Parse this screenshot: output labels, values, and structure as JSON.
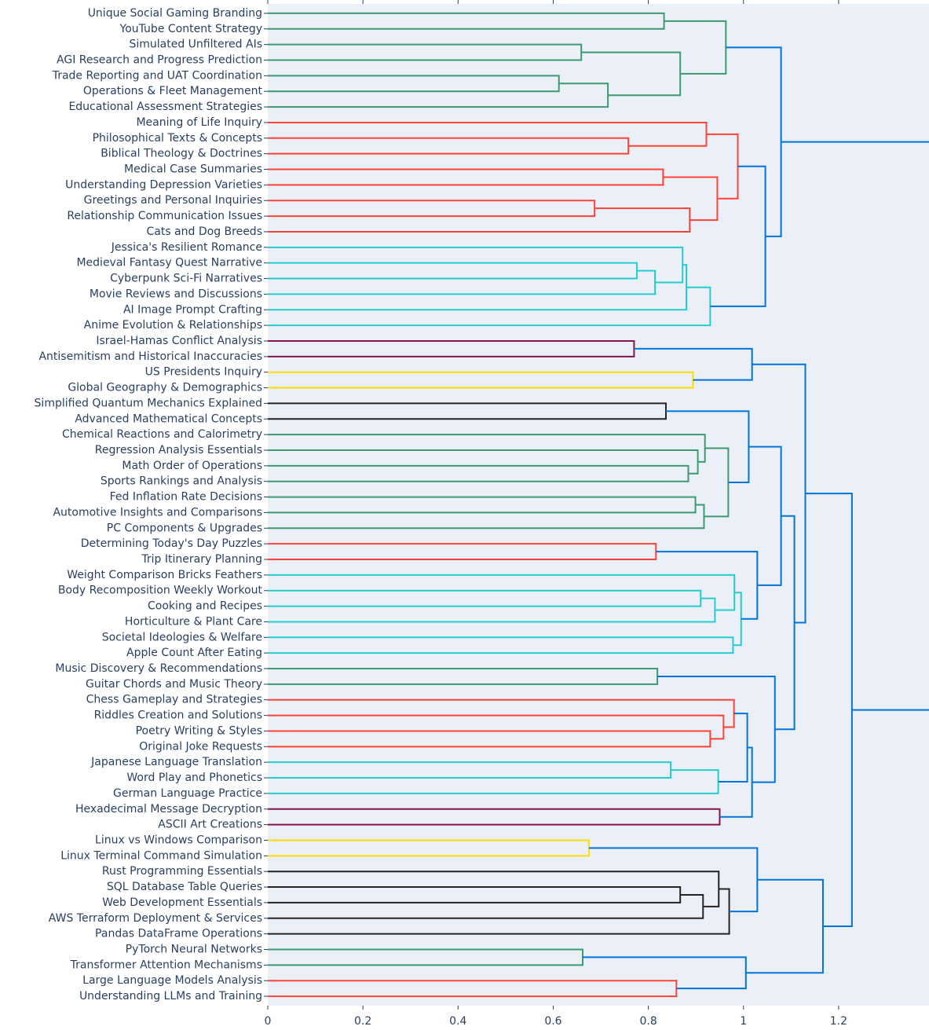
{
  "chart_data": {
    "type": "dendrogram",
    "orientation": "left",
    "xlim": [
      0,
      1.39
    ],
    "xticks": [
      0,
      0.2,
      0.4,
      0.6,
      0.8,
      1,
      1.2
    ],
    "tree": {
      "height": 1.45,
      "color": "#0074d9",
      "children": [
        {
          "height": 1.079,
          "color": "#0074d9",
          "children": [
            {
              "height": 0.963,
              "color": "#3d9970",
              "children": [
                {
                  "height": 0.833,
                  "color": "#3d9970",
                  "children": [
                    "Unique Social Gaming Branding",
                    "YouTube Content Strategy"
                  ]
                },
                {
                  "height": 0.867,
                  "color": "#3d9970",
                  "children": [
                    {
                      "height": 0.659,
                      "color": "#3d9970",
                      "children": [
                        "Simulated Unfiltered AIs",
                        "AGI Research and Progress Prediction"
                      ]
                    },
                    {
                      "height": 0.715,
                      "color": "#3d9970",
                      "children": [
                        {
                          "height": 0.612,
                          "color": "#3d9970",
                          "children": [
                            "Trade Reporting and UAT Coordination",
                            "Operations & Fleet Management"
                          ]
                        },
                        "Educational Assessment Strategies"
                      ]
                    }
                  ]
                }
              ]
            },
            {
              "height": 1.046,
              "color": "#0074d9",
              "children": [
                {
                  "height": 0.988,
                  "color": "#ff4136",
                  "children": [
                    {
                      "height": 0.922,
                      "color": "#ff4136",
                      "children": [
                        "Meaning of Life Inquiry",
                        {
                          "height": 0.758,
                          "color": "#ff4136",
                          "children": [
                            "Philosophical Texts & Concepts",
                            "Biblical Theology & Doctrines"
                          ]
                        }
                      ]
                    },
                    {
                      "height": 0.945,
                      "color": "#ff4136",
                      "children": [
                        {
                          "height": 0.831,
                          "color": "#ff4136",
                          "children": [
                            "Medical Case Summaries",
                            "Understanding Depression Varieties"
                          ]
                        },
                        {
                          "height": 0.887,
                          "color": "#ff4136",
                          "children": [
                            {
                              "height": 0.687,
                              "color": "#ff4136",
                              "children": [
                                "Greetings and Personal Inquiries",
                                "Relationship Communication Issues"
                              ]
                            },
                            "Cats and Dog Breeds"
                          ]
                        }
                      ]
                    }
                  ]
                },
                {
                  "height": 0.93,
                  "color": "#23cdcd",
                  "children": [
                    {
                      "height": 0.88,
                      "color": "#23cdcd",
                      "children": [
                        {
                          "height": 0.872,
                          "color": "#23cdcd",
                          "children": [
                            "Jessica's Resilient Romance",
                            {
                              "height": 0.814,
                              "color": "#23cdcd",
                              "children": [
                                {
                                  "height": 0.776,
                                  "color": "#23cdcd",
                                  "children": [
                                    "Medieval Fantasy Quest Narrative",
                                    "Cyberpunk Sci-Fi Narratives"
                                  ]
                                },
                                "Movie Reviews and Discussions"
                              ]
                            }
                          ]
                        },
                        "AI Image Prompt Crafting"
                      ]
                    },
                    "Anime Evolution & Relationships"
                  ]
                }
              ]
            }
          ]
        },
        {
          "height": 1.228,
          "color": "#0074d9",
          "children": [
            {
              "height": 1.13,
              "color": "#0074d9",
              "children": [
                {
                  "height": 1.018,
                  "color": "#0074d9",
                  "children": [
                    {
                      "height": 0.77,
                      "color": "#85144b",
                      "children": [
                        "Israel-Hamas Conflict Analysis",
                        "Antisemitism and Historical Inaccuracies"
                      ]
                    },
                    {
                      "height": 0.894,
                      "color": "#ffdc00",
                      "children": [
                        "US Presidents Inquiry",
                        "Global Geography & Demographics"
                      ]
                    }
                  ]
                },
                {
                  "height": 1.107,
                  "color": "#0074d9",
                  "children": [
                    {
                      "height": 1.079,
                      "color": "#0074d9",
                      "children": [
                        {
                          "height": 1.011,
                          "color": "#0074d9",
                          "children": [
                            {
                              "height": 0.837,
                              "color": "#282323",
                              "children": [
                                "Simplified Quantum Mechanics Explained",
                                "Advanced Mathematical Concepts"
                              ]
                            },
                            {
                              "height": 0.968,
                              "color": "#3d9970",
                              "children": [
                                {
                                  "height": 0.919,
                                  "color": "#3d9970",
                                  "children": [
                                    "Chemical Reactions and Calorimetry",
                                    {
                                      "height": 0.904,
                                      "color": "#3d9970",
                                      "children": [
                                        "Regression Analysis Essentials",
                                        {
                                          "height": 0.884,
                                          "color": "#3d9970",
                                          "children": [
                                            "Math Order of Operations",
                                            "Sports Rankings and Analysis"
                                          ]
                                        }
                                      ]
                                    }
                                  ]
                                },
                                {
                                  "height": 0.917,
                                  "color": "#3d9970",
                                  "children": [
                                    {
                                      "height": 0.899,
                                      "color": "#3d9970",
                                      "children": [
                                        "Fed Inflation Rate Decisions",
                                        "Automotive Insights and Comparisons"
                                      ]
                                    },
                                    "PC Components & Upgrades"
                                  ]
                                }
                              ]
                            }
                          ]
                        },
                        {
                          "height": 1.029,
                          "color": "#0074d9",
                          "children": [
                            {
                              "height": 0.816,
                              "color": "#ff4136",
                              "children": [
                                "Determining Today's Day Puzzles",
                                "Trip Itinerary Planning"
                              ]
                            },
                            {
                              "height": 0.995,
                              "color": "#23cdcd",
                              "children": [
                                {
                                  "height": 0.981,
                                  "color": "#23cdcd",
                                  "children": [
                                    "Weight Comparison Bricks Feathers",
                                    {
                                      "height": 0.94,
                                      "color": "#23cdcd",
                                      "children": [
                                        {
                                          "height": 0.91,
                                          "color": "#23cdcd",
                                          "children": [
                                            "Body Recomposition Weekly Workout",
                                            "Cooking and Recipes"
                                          ]
                                        },
                                        "Horticulture & Plant Care"
                                      ]
                                    }
                                  ]
                                },
                                {
                                  "height": 0.978,
                                  "color": "#23cdcd",
                                  "children": [
                                    "Societal Ideologies & Welfare",
                                    "Apple Count After Eating"
                                  ]
                                }
                              ]
                            }
                          ]
                        }
                      ]
                    },
                    {
                      "height": 1.066,
                      "color": "#0074d9",
                      "children": [
                        {
                          "height": 0.819,
                          "color": "#3d9970",
                          "children": [
                            "Music Discovery & Recommendations",
                            "Guitar Chords and Music Theory"
                          ]
                        },
                        {
                          "height": 1.018,
                          "color": "#0074d9",
                          "children": [
                            {
                              "height": 1.008,
                              "color": "#0074d9",
                              "children": [
                                {
                                  "height": 0.98,
                                  "color": "#ff4136",
                                  "children": [
                                    "Chess Gameplay and Strategies",
                                    {
                                      "height": 0.958,
                                      "color": "#ff4136",
                                      "children": [
                                        "Riddles Creation and Solutions",
                                        {
                                          "height": 0.93,
                                          "color": "#ff4136",
                                          "children": [
                                            "Poetry Writing & Styles",
                                            "Original Joke Requests"
                                          ]
                                        }
                                      ]
                                    }
                                  ]
                                },
                                {
                                  "height": 0.947,
                                  "color": "#23cdcd",
                                  "children": [
                                    {
                                      "height": 0.847,
                                      "color": "#23cdcd",
                                      "children": [
                                        "Japanese Language Translation",
                                        "Word Play and Phonetics"
                                      ]
                                    },
                                    "German Language Practice"
                                  ]
                                }
                              ]
                            },
                            {
                              "height": 0.95,
                              "color": "#85144b",
                              "children": [
                                "Hexadecimal Message Decryption",
                                "ASCII Art Creations"
                              ]
                            }
                          ]
                        }
                      ]
                    }
                  ]
                }
              ]
            },
            {
              "height": 1.167,
              "color": "#0074d9",
              "children": [
                {
                  "height": 1.029,
                  "color": "#0074d9",
                  "children": [
                    {
                      "height": 0.675,
                      "color": "#ffdc00",
                      "children": [
                        "Linux vs Windows Comparison",
                        "Linux Terminal Command Simulation"
                      ]
                    },
                    {
                      "height": 0.97,
                      "color": "#282323",
                      "children": [
                        {
                          "height": 0.948,
                          "color": "#282323",
                          "children": [
                            "Rust Programming Essentials",
                            {
                              "height": 0.915,
                              "color": "#282323",
                              "children": [
                                {
                                  "height": 0.867,
                                  "color": "#282323",
                                  "children": [
                                    "SQL Database Table Queries",
                                    "Web Development Essentials"
                                  ]
                                },
                                "AWS Terraform Deployment & Services"
                              ]
                            }
                          ]
                        },
                        "Pandas DataFrame Operations"
                      ]
                    }
                  ]
                },
                {
                  "height": 1.005,
                  "color": "#0074d9",
                  "children": [
                    {
                      "height": 0.662,
                      "color": "#3d9970",
                      "children": [
                        "PyTorch Neural Networks",
                        "Transformer Attention Mechanisms"
                      ]
                    },
                    {
                      "height": 0.859,
                      "color": "#ff4136",
                      "children": [
                        "Large Language Models Analysis",
                        "Understanding LLMs and Training"
                      ]
                    }
                  ]
                }
              ]
            }
          ]
        }
      ]
    }
  }
}
